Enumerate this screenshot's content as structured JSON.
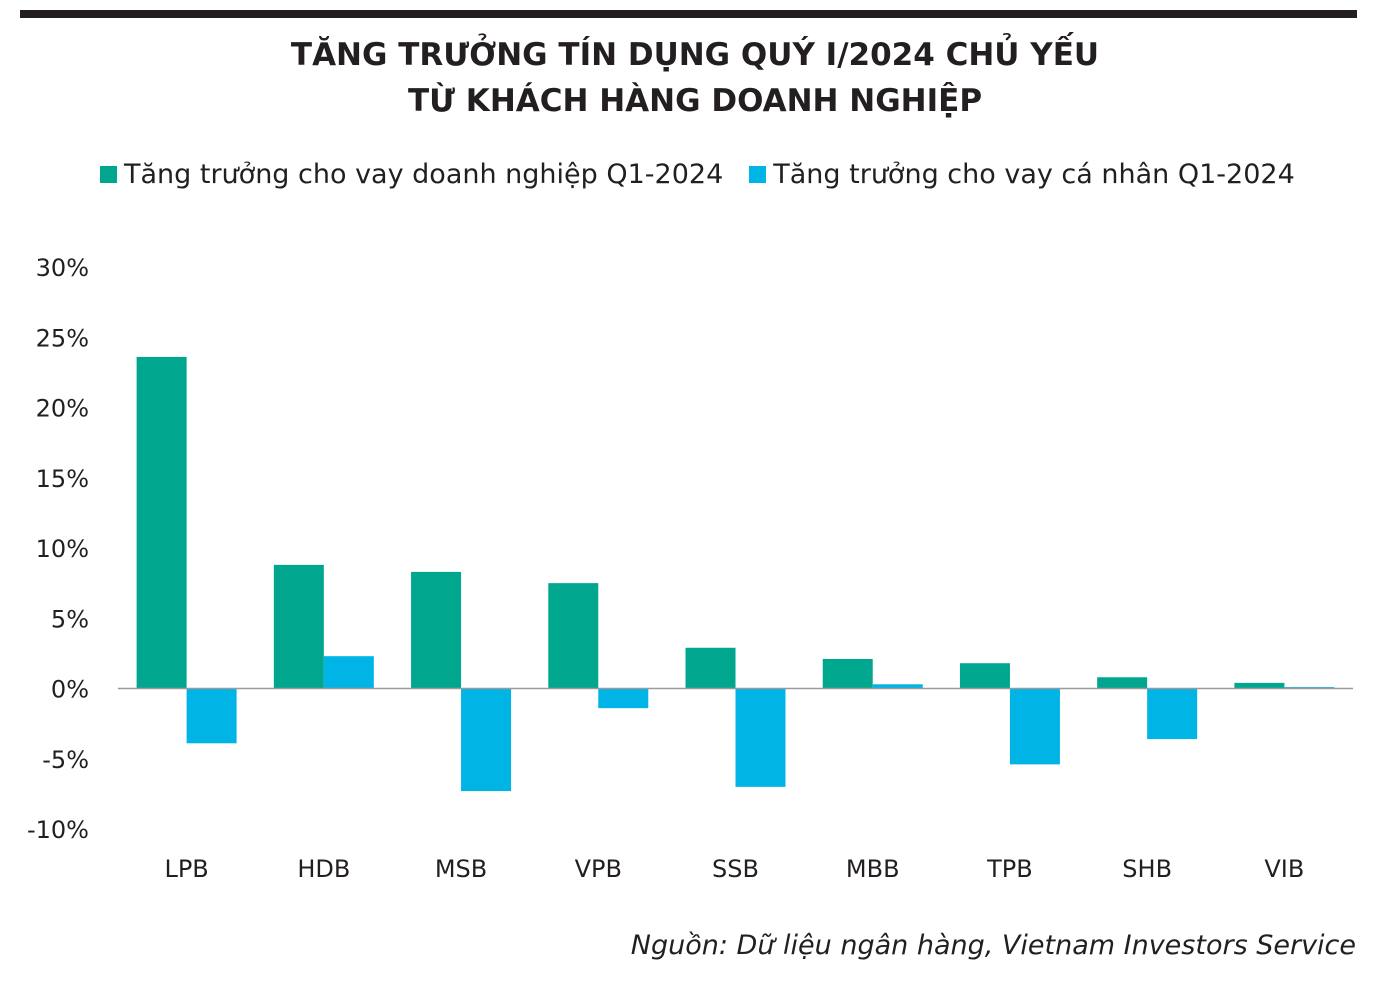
{
  "title_lines": [
    "TĂNG TRƯỞNG TÍN DỤNG QUÝ I/2024 CHỦ YẾU",
    "TỪ KHÁCH HÀNG DOANH NGHIỆP"
  ],
  "source": "Nguồn: Dữ liệu ngân hàng, Vietnam Investors Service",
  "colors": {
    "corporate": "#00a78e",
    "individual": "#00b4e6",
    "axis": "#9a9a9a",
    "text": "#231f20"
  },
  "chart_data": {
    "type": "bar",
    "title": "TĂNG TRƯỞNG TÍN DỤNG QUÝ I/2024 CHỦ YẾU TỪ KHÁCH HÀNG DOANH NGHIỆP",
    "categories": [
      "LPB",
      "HDB",
      "MSB",
      "VPB",
      "SSB",
      "MBB",
      "TPB",
      "SHB",
      "VIB"
    ],
    "series": [
      {
        "name": "Tăng trưởng cho vay doanh nghiệp Q1-2024",
        "values": [
          23.6,
          8.8,
          8.3,
          7.5,
          2.9,
          2.1,
          1.8,
          0.8,
          0.4
        ]
      },
      {
        "name": "Tăng trưởng cho vay cá nhân Q1-2024",
        "values": [
          -3.9,
          2.3,
          -7.3,
          -1.4,
          -7.0,
          0.3,
          -5.4,
          -3.6,
          0.1
        ]
      }
    ],
    "yticks": [
      "30%",
      "25%",
      "20%",
      "15%",
      "10%",
      "5%",
      "0%",
      "-5%",
      "-10%"
    ],
    "ytick_values": [
      30,
      25,
      20,
      15,
      10,
      5,
      0,
      -5,
      -10
    ],
    "ylim": [
      -10,
      30
    ],
    "xlabel": "",
    "ylabel": "",
    "grid": false,
    "legend": "top-left"
  }
}
